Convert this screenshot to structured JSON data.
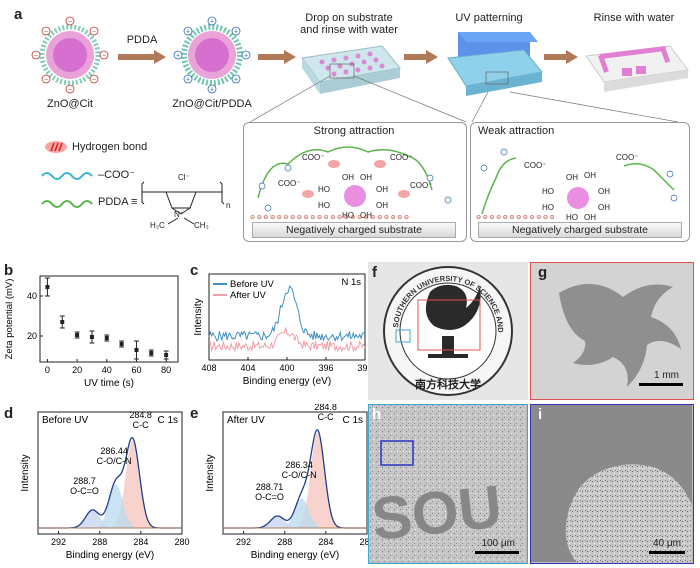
{
  "panel_a": {
    "letter": "a",
    "np1_label": "ZnO@Cit",
    "arrow1_label": "PDDA",
    "np2_label": "ZnO@Cit/PDDA",
    "step1": "Drop on substrate\nand rinse with water",
    "step2": "UV patterning",
    "step3": "Rinse with water",
    "legend_hbond": "Hydrogen bond",
    "legend_coo": "–COO⁻",
    "legend_pdda": "PDDA ≡",
    "strong_title": "Strong attraction",
    "weak_title": "Weak attraction",
    "substrate": "Negatively charged substrate",
    "coo": "COO⁻",
    "oh": "OH",
    "ho": "HO",
    "cl": "Cl⁻",
    "n": "n",
    "nplus": "N⁺",
    "h3c": "H₃C",
    "ch3": "CH₃"
  },
  "panel_b": {
    "letter": "b",
    "chart_data": {
      "type": "scatter",
      "xlabel": "UV time (s)",
      "ylabel": "Zeta potential (mV)",
      "xlim": [
        -5,
        88
      ],
      "ylim": [
        7,
        50
      ],
      "x_ticks": [
        "0",
        "20",
        "40",
        "60",
        "80"
      ],
      "y_ticks": [
        "20",
        "40"
      ],
      "x": [
        0,
        10,
        20,
        30,
        40,
        50,
        60,
        70,
        80
      ],
      "y": [
        44.5,
        27,
        20.5,
        19.5,
        19,
        16,
        13,
        11.5,
        10.5
      ],
      "err": [
        4.5,
        3,
        1.5,
        3,
        1.5,
        1.5,
        4.5,
        1.5,
        2
      ]
    }
  },
  "panel_c": {
    "letter": "c",
    "chart_data": {
      "type": "line",
      "xlabel": "Binding energy (eV)",
      "ylabel": "Intensity",
      "annotation": "N 1s",
      "xlim": [
        408,
        392
      ],
      "x_ticks": [
        "408",
        "404",
        "400",
        "396",
        "392"
      ],
      "series": [
        {
          "name": "Before UV",
          "color": "#3f8fc2"
        },
        {
          "name": "After UV",
          "color": "#f0a0a8"
        }
      ]
    }
  },
  "panel_d": {
    "letter": "d",
    "chart_data": {
      "type": "line",
      "title": "Before UV",
      "annotation": "C 1s",
      "xlabel": "Binding energy (eV)",
      "ylabel": "Intensity",
      "xlim": [
        294,
        280
      ],
      "x_ticks": [
        "292",
        "288",
        "284",
        "280"
      ],
      "peaks": [
        {
          "be": "284.8",
          "name": "C-C"
        },
        {
          "be": "286.44",
          "name": "C-O/C-N"
        },
        {
          "be": "288.7",
          "name": "O-C=O"
        }
      ]
    }
  },
  "panel_e": {
    "letter": "e",
    "chart_data": {
      "type": "line",
      "title": "After UV",
      "annotation": "C 1s",
      "xlabel": "Binding energy (eV)",
      "ylabel": "Intensity",
      "xlim": [
        294,
        280
      ],
      "x_ticks": [
        "292",
        "288",
        "284",
        "280"
      ],
      "peaks": [
        {
          "be": "284.8",
          "name": "C-C"
        },
        {
          "be": "286.34",
          "name": "C-O/C-N"
        },
        {
          "be": "288.71",
          "name": "O-C=O"
        }
      ]
    }
  },
  "panel_f": {
    "letter": "f",
    "seal_text": "SOUTHERN UNIVERSITY OF SCIENCE AND TECHNOLOGY",
    "seal_chinese": "南方科技大学"
  },
  "panel_g": {
    "letter": "g",
    "scale": "1 mm"
  },
  "panel_h": {
    "letter": "h",
    "scale": "100 μm",
    "pattern_text": "SOU"
  },
  "panel_i": {
    "letter": "i",
    "scale": "40 μm"
  }
}
